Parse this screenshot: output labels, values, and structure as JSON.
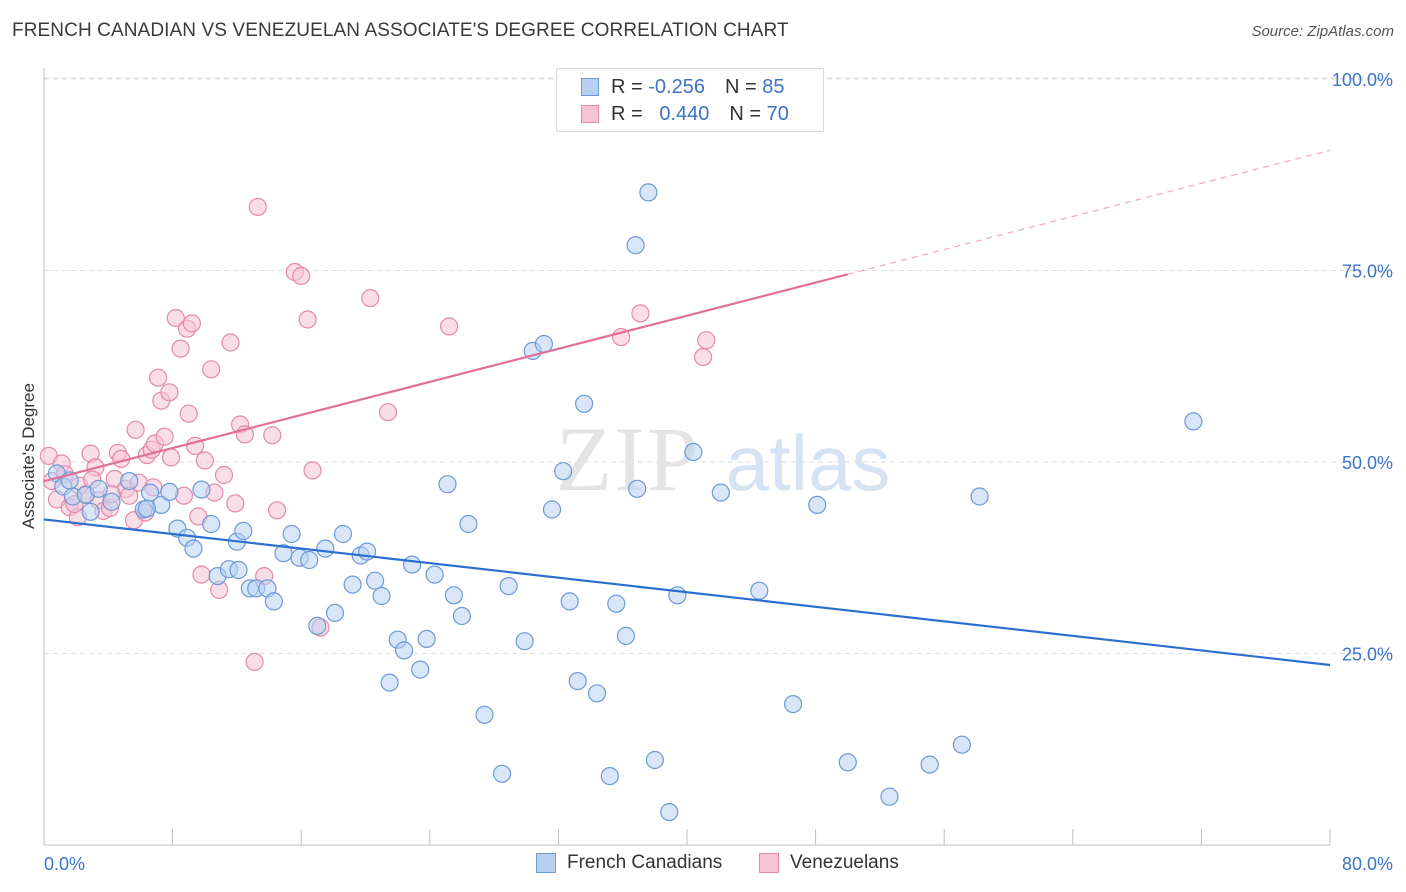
{
  "header": {
    "title": "FRENCH CANADIAN VS VENEZUELAN ASSOCIATE'S DEGREE CORRELATION CHART",
    "source": "Source: ZipAtlas.com"
  },
  "watermark": {
    "zip": "ZIP",
    "atlas": "atlas"
  },
  "legend": {
    "rows": [
      {
        "r_label": "R =",
        "r_value": "-0.256",
        "n_label": "N =",
        "n_value": "85"
      },
      {
        "r_label": "R =",
        "r_value": "0.440",
        "n_label": "N =",
        "n_value": "70"
      }
    ]
  },
  "bottom_legend": [
    "French Canadians",
    "Venezuelans"
  ],
  "colors": {
    "blue_fill": "#b8d1f3",
    "blue_stroke": "#6d9ad6",
    "blue_line": "#2a6ed0",
    "pink_fill": "#f6c3d3",
    "pink_stroke": "#e48aa9",
    "pink_line": "#e07098",
    "grid": "#dddddd",
    "tick_label": "#3b74c7"
  },
  "chart_data": {
    "type": "scatter",
    "title": "FRENCH CANADIAN VS VENEZUELAN ASSOCIATE'S DEGREE CORRELATION CHART",
    "xlabel": "",
    "ylabel": "Associate's Degree",
    "xlim": [
      0,
      80
    ],
    "ylim": [
      0,
      105
    ],
    "x_tick_labels": [
      "0.0%",
      "80.0%"
    ],
    "y_ticks": [
      25,
      50,
      75,
      100
    ],
    "y_tick_labels": [
      "25.0%",
      "50.0%",
      "75.0%",
      "100.0%"
    ],
    "grid": true,
    "legend_placement": "top-center",
    "series": [
      {
        "name": "French Canadians",
        "r": -0.256,
        "n": 85,
        "trend": {
          "x": [
            0,
            80
          ],
          "y": [
            42.5,
            23.5
          ]
        },
        "points": [
          [
            0.8,
            48.5
          ],
          [
            1.2,
            46.8
          ],
          [
            1.8,
            45.5
          ],
          [
            2.6,
            45.7
          ],
          [
            2.9,
            43.5
          ],
          [
            3.4,
            46.5
          ],
          [
            4.2,
            44.8
          ],
          [
            5.3,
            47.5
          ],
          [
            6.2,
            43.8
          ],
          [
            6.6,
            46
          ],
          [
            7.3,
            44.4
          ],
          [
            7.8,
            46.1
          ],
          [
            8.3,
            41.3
          ],
          [
            8.9,
            40.1
          ],
          [
            9.3,
            38.7
          ],
          [
            9.8,
            46.4
          ],
          [
            10.4,
            41.9
          ],
          [
            10.8,
            35.1
          ],
          [
            11.5,
            36
          ],
          [
            12,
            39.6
          ],
          [
            12.4,
            41
          ],
          [
            12.8,
            33.5
          ],
          [
            13.2,
            33.5
          ],
          [
            13.9,
            33.5
          ],
          [
            14.3,
            31.8
          ],
          [
            14.9,
            38.1
          ],
          [
            15.4,
            40.6
          ],
          [
            15.9,
            37.5
          ],
          [
            16.5,
            37.2
          ],
          [
            17,
            28.6
          ],
          [
            17.5,
            38.7
          ],
          [
            18.1,
            30.3
          ],
          [
            18.6,
            40.6
          ],
          [
            19.2,
            34
          ],
          [
            19.7,
            37.8
          ],
          [
            20.1,
            38.3
          ],
          [
            20.6,
            34.5
          ],
          [
            21,
            32.5
          ],
          [
            21.5,
            21.2
          ],
          [
            22,
            26.8
          ],
          [
            22.4,
            25.4
          ],
          [
            22.9,
            36.6
          ],
          [
            23.4,
            22.9
          ],
          [
            23.8,
            26.9
          ],
          [
            24.3,
            35.3
          ],
          [
            25.1,
            47.1
          ],
          [
            25.5,
            32.6
          ],
          [
            26,
            29.9
          ],
          [
            26.4,
            41.9
          ],
          [
            27.4,
            17
          ],
          [
            28.5,
            9.3
          ],
          [
            28.9,
            33.8
          ],
          [
            29.9,
            26.6
          ],
          [
            30.4,
            64.5
          ],
          [
            31.1,
            65.4
          ],
          [
            31.6,
            43.8
          ],
          [
            32.3,
            48.8
          ],
          [
            32.7,
            31.8
          ],
          [
            33.2,
            21.4
          ],
          [
            33.6,
            57.6
          ],
          [
            34.4,
            19.8
          ],
          [
            35.2,
            9
          ],
          [
            35.6,
            31.5
          ],
          [
            36.2,
            27.3
          ],
          [
            36.9,
            46.5
          ],
          [
            36.8,
            78.3
          ],
          [
            37.6,
            85.2
          ],
          [
            38,
            11.1
          ],
          [
            38.9,
            4.3
          ],
          [
            39.4,
            32.6
          ],
          [
            40.4,
            51.3
          ],
          [
            42.1,
            46
          ],
          [
            44.5,
            33.2
          ],
          [
            46.6,
            18.4
          ],
          [
            48.1,
            44.4
          ],
          [
            50,
            10.8
          ],
          [
            52.6,
            6.3
          ],
          [
            55.1,
            10.5
          ],
          [
            57.1,
            13.1
          ],
          [
            58.2,
            45.5
          ],
          [
            71.5,
            55.3
          ],
          [
            1.6,
            47.6
          ],
          [
            6.4,
            43.9
          ],
          [
            12.1,
            35.9
          ]
        ]
      },
      {
        "name": "Venezuelans",
        "r": 0.44,
        "n": 70,
        "trend": {
          "x": [
            0,
            50
          ],
          "y": [
            47.5,
            74.5
          ]
        },
        "trend_ext": {
          "x": [
            50,
            80
          ],
          "y": [
            74.5,
            90.7
          ]
        },
        "points": [
          [
            0.3,
            50.8
          ],
          [
            0.5,
            47.5
          ],
          [
            0.8,
            45.1
          ],
          [
            1.1,
            49.8
          ],
          [
            1.3,
            48.4
          ],
          [
            1.6,
            44.1
          ],
          [
            2.1,
            42.8
          ],
          [
            2.6,
            45.8
          ],
          [
            2.2,
            46.9
          ],
          [
            2.9,
            51.1
          ],
          [
            3.2,
            49.3
          ],
          [
            3.4,
            45
          ],
          [
            3.7,
            43.6
          ],
          [
            4.1,
            44
          ],
          [
            4.4,
            47.8
          ],
          [
            4.6,
            51.2
          ],
          [
            4.8,
            50.4
          ],
          [
            5.1,
            46.5
          ],
          [
            5.3,
            45.6
          ],
          [
            5.6,
            42.4
          ],
          [
            5.7,
            54.2
          ],
          [
            5.9,
            47.3
          ],
          [
            6.3,
            43.4
          ],
          [
            6.4,
            50.9
          ],
          [
            6.7,
            51.6
          ],
          [
            6.9,
            52.4
          ],
          [
            7.1,
            61
          ],
          [
            7.3,
            58
          ],
          [
            7.5,
            53.3
          ],
          [
            7.8,
            59.1
          ],
          [
            7.9,
            50.6
          ],
          [
            8.2,
            68.8
          ],
          [
            8.5,
            64.8
          ],
          [
            8.7,
            45.6
          ],
          [
            8.9,
            67.4
          ],
          [
            9,
            56.3
          ],
          [
            9.2,
            68.1
          ],
          [
            9.6,
            42.9
          ],
          [
            9.8,
            35.3
          ],
          [
            10,
            50.2
          ],
          [
            10.4,
            62.1
          ],
          [
            10.6,
            46
          ],
          [
            10.9,
            33.3
          ],
          [
            11.2,
            48.3
          ],
          [
            11.6,
            65.6
          ],
          [
            11.9,
            44.6
          ],
          [
            12.2,
            54.9
          ],
          [
            12.5,
            53.6
          ],
          [
            13.1,
            23.9
          ],
          [
            13.3,
            83.3
          ],
          [
            13.7,
            35.1
          ],
          [
            14.2,
            53.5
          ],
          [
            14.5,
            43.7
          ],
          [
            15.6,
            74.8
          ],
          [
            16,
            74.3
          ],
          [
            16.4,
            68.6
          ],
          [
            16.7,
            48.9
          ],
          [
            17.2,
            28.4
          ],
          [
            20.3,
            71.4
          ],
          [
            21.4,
            56.5
          ],
          [
            25.2,
            67.7
          ],
          [
            35.9,
            66.3
          ],
          [
            37.1,
            69.4
          ],
          [
            41,
            63.7
          ],
          [
            41.2,
            65.9
          ],
          [
            4.2,
            45.8
          ],
          [
            6.8,
            46.7
          ],
          [
            3,
            47.7
          ],
          [
            1.9,
            44.5
          ],
          [
            9.4,
            52.1
          ]
        ]
      }
    ]
  }
}
